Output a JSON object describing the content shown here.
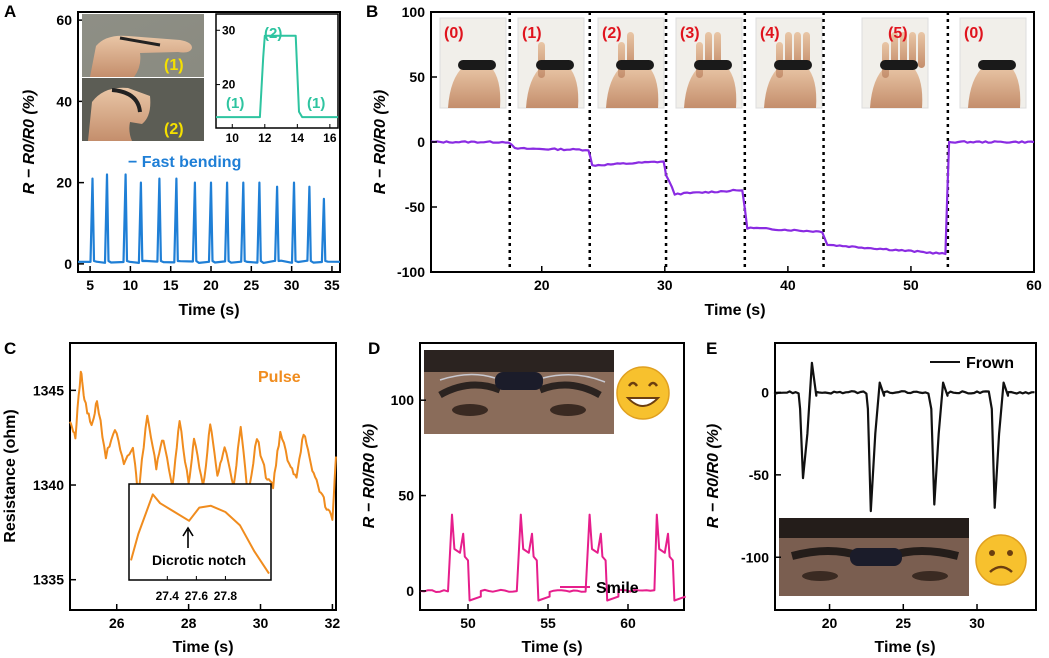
{
  "colors": {
    "a_fast_bending": "#1f7fd6",
    "a_inset": "#2ec4a0",
    "b": "#8a2be2",
    "c": "#f08c1e",
    "d": "#e61e8c",
    "e": "#111111",
    "state_label_red": "#e0141e",
    "photo_label_yellow": "#f5e000"
  },
  "panels": {
    "A": "A",
    "B": "B",
    "C": "C",
    "D": "D",
    "E": "E"
  },
  "labels": {
    "a_photo_1": "(1)",
    "a_photo_2": "(2)",
    "a_inset_1a": "(1)",
    "a_inset_2": "(2)",
    "a_inset_1b": "(1)",
    "b_states": [
      "(0)",
      "(1)",
      "(2)",
      "(3)",
      "(4)",
      "(5)",
      "(0)"
    ],
    "c_inset_annotation": "Dicrotic notch"
  },
  "chart_data": [
    {
      "id": "A",
      "type": "line",
      "xlabel": "Time (s)",
      "ylabel": "R − R0/R0 (%)",
      "xlim": [
        3.5,
        36
      ],
      "ylim": [
        -2,
        62
      ],
      "xticks": [
        5,
        10,
        15,
        20,
        25,
        30,
        35
      ],
      "yticks": [
        0,
        20,
        40,
        60
      ],
      "legend": "− Fast bending",
      "series": [
        {
          "name": "Fast bending",
          "peaks_x": [
            5.3,
            7.1,
            9.4,
            11.3,
            13.6,
            15.7,
            18.0,
            20.0,
            22.0,
            24.0,
            26.0,
            28.2,
            30.3,
            32.2,
            34.0
          ],
          "peaks_y": [
            21,
            22,
            22,
            20,
            21,
            21,
            20,
            20,
            20,
            20,
            20,
            19,
            20,
            19,
            16
          ],
          "baseline": 0.5
        }
      ],
      "inset": {
        "type": "line",
        "xlim": [
          9,
          16.5
        ],
        "ylim": [
          12,
          33
        ],
        "xticks": [
          10,
          12,
          14,
          16
        ],
        "yticks": [
          20,
          30
        ],
        "x": [
          9.0,
          11.7,
          11.9,
          12.0,
          13.9,
          14.1,
          14.3,
          16.5
        ],
        "y": [
          14,
          14,
          25,
          29,
          29,
          15,
          14,
          14
        ]
      }
    },
    {
      "id": "B",
      "type": "line",
      "xlabel": "Time (s)",
      "ylabel": "R − R0/R0 (%)",
      "xlim": [
        11,
        60
      ],
      "ylim": [
        -100,
        100
      ],
      "xticks": [
        20,
        30,
        40,
        50,
        60
      ],
      "yticks": [
        -100,
        -50,
        0,
        50,
        100
      ],
      "separators_x": [
        17.4,
        23.9,
        30.1,
        36.5,
        42.9,
        53.0
      ],
      "x": [
        11,
        17.3,
        17.8,
        23.8,
        24.1,
        29.9,
        30.1,
        30.8,
        36.3,
        36.7,
        42.8,
        43.2,
        52.8,
        53.1,
        60
      ],
      "y": [
        0,
        0,
        -5,
        -6,
        -18,
        -15,
        -25,
        -40,
        -37,
        -66,
        -69,
        -79,
        -86,
        0,
        0
      ]
    },
    {
      "id": "C",
      "type": "line",
      "xlabel": "Time (s)",
      "ylabel": "Resistance (ohm)",
      "xlim": [
        24.7,
        32.1
      ],
      "ylim": [
        1333.4,
        1347.5
      ],
      "xticks": [
        26,
        28,
        30,
        32
      ],
      "yticks": [
        1335,
        1340,
        1345
      ],
      "legend": "Pulse",
      "series": [
        {
          "name": "Pulse",
          "x": [
            24.7,
            24.85,
            25.0,
            25.1,
            25.3,
            25.45,
            25.7,
            25.95,
            26.2,
            26.45,
            26.6,
            26.85,
            27.1,
            27.3,
            27.55,
            27.75,
            28.0,
            28.15,
            28.4,
            28.6,
            28.8,
            29.0,
            29.25,
            29.45,
            29.65,
            29.9,
            30.15,
            30.35,
            30.55,
            30.8,
            31.0,
            31.2,
            31.4,
            31.6,
            31.8,
            32.0,
            32.1
          ],
          "y": [
            1343.5,
            1342.5,
            1346.0,
            1344.5,
            1343.0,
            1344.5,
            1341.5,
            1343.0,
            1341.0,
            1342.0,
            1339.5,
            1343.8,
            1341.0,
            1342.5,
            1340.0,
            1343.5,
            1340.0,
            1342.5,
            1339.8,
            1343.2,
            1340.5,
            1342.0,
            1340.0,
            1343.0,
            1339.5,
            1342.5,
            1340.5,
            1340.0,
            1342.8,
            1341.0,
            1340.5,
            1342.8,
            1341.0,
            1340.0,
            1339.0,
            1338.2,
            1341.5
          ]
        }
      ],
      "inset": {
        "type": "line",
        "xlim": [
          27.15,
          28.1
        ],
        "xticks": [
          27.4,
          27.6,
          27.8
        ],
        "x": [
          27.15,
          27.2,
          27.3,
          27.35,
          27.45,
          27.55,
          27.62,
          27.7,
          27.8,
          27.9,
          28.0,
          28.1
        ],
        "y": [
          0.2,
          0.5,
          0.95,
          0.85,
          0.75,
          0.65,
          0.8,
          0.82,
          0.75,
          0.6,
          0.3,
          0.05
        ]
      }
    },
    {
      "id": "D",
      "type": "line",
      "xlabel": "Time (s)",
      "ylabel": "R − R0/R0 (%)",
      "xlim": [
        47,
        63.5
      ],
      "ylim": [
        -10,
        130
      ],
      "xticks": [
        50,
        55,
        60
      ],
      "yticks": [
        0,
        50,
        100
      ],
      "legend": "Smile",
      "series": [
        {
          "name": "Smile",
          "events_x": [
            49.0,
            53.3,
            57.6,
            61.8
          ],
          "event_peaks": [
            40,
            40,
            40,
            40
          ]
        }
      ]
    },
    {
      "id": "E",
      "type": "line",
      "xlabel": "Time (s)",
      "ylabel": "R − R0/R0 (%)",
      "xlim": [
        16.3,
        34
      ],
      "ylim": [
        -132,
        30
      ],
      "xticks": [
        20,
        25,
        30
      ],
      "yticks": [
        -100,
        -50,
        0
      ],
      "legend": "Frown",
      "series": [
        {
          "name": "Frown",
          "events_x": [
            18.2,
            22.8,
            27.1,
            31.2
          ],
          "event_mins": [
            -52,
            -72,
            -68,
            -70
          ]
        }
      ]
    }
  ]
}
